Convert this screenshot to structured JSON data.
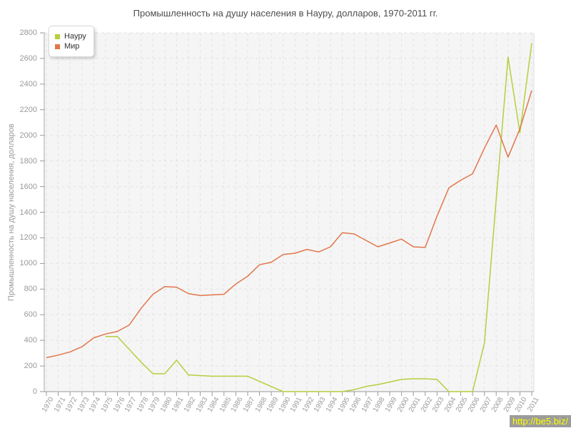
{
  "title": "Промышленность на душу населения в Науру, долларов, 1970-2011 гг.",
  "watermark": {
    "text": "http://be5.biz/"
  },
  "chart_data": {
    "type": "line",
    "title": "Промышленность на душу населения в Науру, долларов, 1970-2011 гг.",
    "xlabel": "",
    "ylabel": "Промышленность на душу населения, долларов",
    "ylim": [
      0,
      2800
    ],
    "ytick_step": 200,
    "yticks": [
      0,
      200,
      400,
      600,
      800,
      1000,
      1200,
      1400,
      1600,
      1800,
      2000,
      2200,
      2400,
      2600,
      2800
    ],
    "grid": true,
    "legend_position": "top-left",
    "x": [
      1970,
      1971,
      1972,
      1973,
      1974,
      1975,
      1976,
      1977,
      1978,
      1979,
      1980,
      1981,
      1982,
      1983,
      1984,
      1985,
      1986,
      1987,
      1988,
      1989,
      1990,
      1991,
      1992,
      1993,
      1994,
      1995,
      1996,
      1997,
      1998,
      1999,
      2000,
      2001,
      2002,
      2003,
      2004,
      2005,
      2006,
      2007,
      2008,
      2009,
      2010,
      2011
    ],
    "series": [
      {
        "name": "Науру",
        "color": "#b4cf3c",
        "values": [
          null,
          null,
          null,
          null,
          null,
          430,
          430,
          330,
          230,
          140,
          140,
          245,
          130,
          125,
          120,
          120,
          120,
          120,
          80,
          40,
          0,
          0,
          0,
          0,
          0,
          0,
          15,
          40,
          55,
          75,
          95,
          100,
          100,
          95,
          0,
          0,
          0,
          380,
          1500,
          2610,
          2020,
          2720
        ]
      },
      {
        "name": "Мир",
        "color": "#e1764a",
        "values": [
          265,
          285,
          310,
          350,
          420,
          450,
          470,
          520,
          650,
          760,
          820,
          815,
          765,
          750,
          755,
          760,
          840,
          900,
          990,
          1010,
          1070,
          1080,
          1110,
          1090,
          1130,
          1240,
          1230,
          1180,
          1130,
          1160,
          1190,
          1130,
          1125,
          1370,
          1590,
          1650,
          1700,
          1900,
          2080,
          1830,
          2050,
          2350
        ]
      }
    ]
  }
}
